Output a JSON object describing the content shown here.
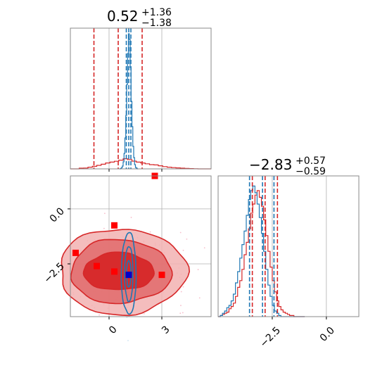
{
  "colors": {
    "red": "#d62728",
    "blue": "#1f77b4",
    "red_fill_inner": "#d62728",
    "red_fill_mid": "#e06a6b",
    "red_fill_outer": "#f2b1b1",
    "marker_red": "#ff0000",
    "marker_blue": "#0000cc",
    "grid": "#b0b0b0"
  },
  "chart_data": [
    {
      "type": "histogram",
      "panel": "marginal-param1",
      "title_value": "0.52",
      "title_plus": "+1.36",
      "title_minus": "−1.38",
      "xlim": [
        -2.2,
        5.8
      ],
      "xticks": [
        0,
        3
      ],
      "grid": true,
      "series": [
        {
          "color": "red",
          "bin_start": -2.2,
          "bin_width": 0.25,
          "counts": [
            0,
            0,
            0.5,
            0.6,
            1.2,
            1.8,
            2.5,
            3.3,
            4.2,
            4.8,
            5.4,
            6.2,
            7.2,
            6.6,
            5.5,
            4.8,
            4.2,
            3.6,
            3.0,
            2.8,
            2.2,
            1.6,
            1.2,
            0.9,
            0.7,
            0.5,
            0.3,
            0.2,
            0.1,
            0,
            0,
            0
          ],
          "quantiles": [
            -0.86,
            0.52,
            1.88
          ]
        },
        {
          "color": "blue",
          "bin_start": 0.6,
          "bin_width": 0.05,
          "counts": [
            0,
            0.3,
            0.8,
            2,
            5,
            11,
            22,
            38,
            60,
            82,
            96,
            92,
            72,
            48,
            30,
            16,
            8,
            3,
            1,
            0.5,
            0
          ],
          "quantiles": [
            0.98,
            1.12,
            1.24
          ]
        }
      ],
      "ymax": 100
    },
    {
      "type": "histogram",
      "panel": "marginal-param2",
      "title_value": "−2.83",
      "title_plus": "+0.57",
      "title_minus": "−0.59",
      "xlim": [
        -5.0,
        1.5
      ],
      "xticks": [
        -2.5,
        0.0
      ],
      "xtick_labels": [
        "−2.5",
        "0.0"
      ],
      "grid": true,
      "series": [
        {
          "color": "red",
          "bin_start": -5.0,
          "bin_width": 0.1,
          "counts": [
            0,
            1,
            2,
            3,
            4,
            7,
            9,
            12,
            18,
            26,
            32,
            42,
            55,
            66,
            78,
            92,
            100,
            108,
            112,
            106,
            98,
            86,
            72,
            58,
            44,
            32,
            22,
            14,
            9,
            6,
            4,
            3,
            2,
            1,
            1,
            0,
            0,
            0,
            0,
            0
          ],
          "quantiles": [
            -3.42,
            -2.83,
            -2.26
          ]
        },
        {
          "color": "blue",
          "bin_start": -5.0,
          "bin_width": 0.1,
          "counts": [
            0,
            1,
            3,
            5,
            8,
            10,
            14,
            20,
            30,
            40,
            52,
            64,
            76,
            90,
            104,
            112,
            116,
            110,
            100,
            88,
            74,
            58,
            42,
            28,
            18,
            10,
            5,
            3,
            1,
            0,
            0,
            0,
            0,
            0,
            0,
            0,
            0,
            0,
            0,
            0
          ],
          "quantiles": [
            -3.55,
            -2.95,
            -2.42
          ]
        }
      ],
      "ymax": 125
    },
    {
      "type": "scatter",
      "panel": "joint-2d",
      "xlim": [
        -2.2,
        5.8
      ],
      "ylim": [
        -4.9,
        1.5
      ],
      "xticks": [
        0,
        3
      ],
      "yticks": [
        0.0,
        -2.5
      ],
      "ytick_labels": [
        "0.0",
        "−2.5"
      ],
      "xtick_labels": [
        "0",
        "3"
      ],
      "grid": true,
      "red_contours": [
        {
          "level": "outer",
          "cx": 0.75,
          "cy": -2.85,
          "rx": 3.6,
          "ry": 1.95
        },
        {
          "level": "mid",
          "cx": 0.65,
          "cy": -2.85,
          "rx": 2.85,
          "ry": 1.45
        },
        {
          "level": "inner",
          "cx": 0.55,
          "cy": -2.85,
          "rx": 2.0,
          "ry": 0.85
        }
      ],
      "blue_contours": [
        {
          "cx": 1.12,
          "cy": -2.95,
          "rx": 0.42,
          "ry": 1.85
        },
        {
          "cx": 1.12,
          "cy": -2.95,
          "rx": 0.24,
          "ry": 1.25
        },
        {
          "cx": 1.12,
          "cy": -2.95,
          "rx": 0.12,
          "ry": 0.6
        }
      ],
      "red_markers": [
        {
          "x": 2.6,
          "y": 1.5
        },
        {
          "x": 0.3,
          "y": -0.75
        },
        {
          "x": -1.9,
          "y": -2.0
        },
        {
          "x": -0.7,
          "y": -2.6
        },
        {
          "x": 0.3,
          "y": -2.85
        },
        {
          "x": 3.0,
          "y": -3.0
        }
      ],
      "blue_marker": {
        "x": 1.12,
        "y": -3.0
      }
    }
  ]
}
